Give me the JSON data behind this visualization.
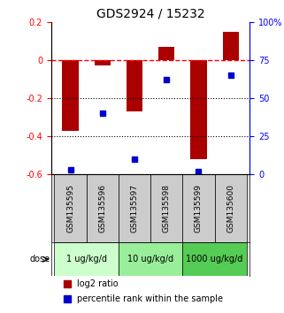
{
  "title": "GDS2924 / 15232",
  "samples": [
    "GSM135595",
    "GSM135596",
    "GSM135597",
    "GSM135598",
    "GSM135599",
    "GSM135600"
  ],
  "log2_ratio": [
    -0.37,
    -0.03,
    -0.27,
    0.07,
    -0.52,
    0.15
  ],
  "percentile_rank": [
    3,
    40,
    10,
    62,
    2,
    65
  ],
  "dose_groups": [
    {
      "label": "1 ug/kg/d",
      "samples": [
        0,
        1
      ],
      "color": "#ccffcc"
    },
    {
      "label": "10 ug/kg/d",
      "samples": [
        2,
        3
      ],
      "color": "#99ee99"
    },
    {
      "label": "1000 ug/kg/d",
      "samples": [
        4,
        5
      ],
      "color": "#55cc55"
    }
  ],
  "bar_color": "#aa0000",
  "dot_color": "#0000cc",
  "left_ylim": [
    -0.6,
    0.2
  ],
  "right_ylim": [
    0,
    100
  ],
  "left_yticks": [
    -0.6,
    -0.4,
    -0.2,
    0.0,
    0.2
  ],
  "right_yticks": [
    0,
    25,
    50,
    75,
    100
  ],
  "left_ytick_labels": [
    "-0.6",
    "-0.4",
    "-0.2",
    "0",
    "0.2"
  ],
  "right_ytick_labels": [
    "0",
    "25",
    "50",
    "75",
    "100%"
  ],
  "hline_y": 0.0,
  "dotted_hlines": [
    -0.2,
    -0.4
  ],
  "background_color": "#ffffff",
  "plot_bg": "#ffffff",
  "bar_width": 0.5
}
